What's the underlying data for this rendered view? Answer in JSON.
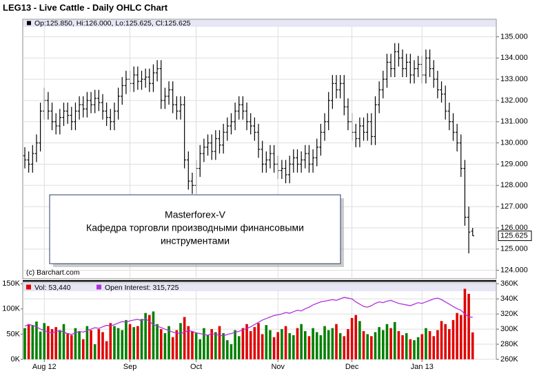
{
  "chart_data": [
    {
      "type": "ohlc",
      "title": "LEG13 - Live Cattle - Daily OHLC Chart",
      "legend": "Op:125.850, Hi:126.000, Lo:125.625, Cl:125.625",
      "watermark": "(c) Barchart.com",
      "annotation": [
        "Masterforex-V",
        "Кафедра торговли производными финансовыми",
        "инструментами"
      ],
      "color": "#000000",
      "grid": true,
      "ylim": [
        123.6,
        135.5
      ],
      "yticks": [
        {
          "value": 124,
          "label": "124.000"
        },
        {
          "value": 125,
          "label": "125.000"
        },
        {
          "value": 126,
          "label": "126.000"
        },
        {
          "value": 127,
          "label": "127.000"
        },
        {
          "value": 128,
          "label": "128.000"
        },
        {
          "value": 129,
          "label": "129.000"
        },
        {
          "value": 130,
          "label": "130.000"
        },
        {
          "value": 131,
          "label": "131.000"
        },
        {
          "value": 132,
          "label": "132.000"
        },
        {
          "value": 133,
          "label": "133.000"
        },
        {
          "value": 134,
          "label": "134.000"
        },
        {
          "value": 135,
          "label": "135.000"
        }
      ],
      "open": [
        129.4,
        129.2,
        129.0,
        129.5,
        130.0,
        131.5,
        132.0,
        131.5,
        131.0,
        130.8,
        131.2,
        131.5,
        131.3,
        131.0,
        131.5,
        131.8,
        131.6,
        132.0,
        131.8,
        132.1,
        131.9,
        131.5,
        131.2,
        131.0,
        131.5,
        132.2,
        132.7,
        133.0,
        132.8,
        133.2,
        132.9,
        133.0,
        133.1,
        132.8,
        133.3,
        133.5,
        132.0,
        132.2,
        132.5,
        131.8,
        131.5,
        131.8,
        129.2,
        128.2,
        128.0,
        128.8,
        129.5,
        129.8,
        130.0,
        129.6,
        130.2,
        129.9,
        130.5,
        130.8,
        131.0,
        131.5,
        131.8,
        131.5,
        131.0,
        130.8,
        130.5,
        129.7,
        129.0,
        129.2,
        129.5,
        129.0,
        128.7,
        128.8,
        128.5,
        129.0,
        129.3,
        129.0,
        129.2,
        129.5,
        129.0,
        129.3,
        129.8,
        130.5,
        131.0,
        132.0,
        132.8,
        132.5,
        132.8,
        131.7,
        131.0,
        130.5,
        130.2,
        130.8,
        130.5,
        131.0,
        130.3,
        131.8,
        132.5,
        133.0,
        133.8,
        133.5,
        134.3,
        134.0,
        133.5,
        133.8,
        133.2,
        133.5,
        133.7,
        133.2,
        134.0,
        133.5,
        133.0,
        132.5,
        132.3,
        131.5,
        131.0,
        130.5,
        130.0,
        128.8,
        126.5,
        125.85
      ],
      "high": [
        129.8,
        129.6,
        129.9,
        130.4,
        131.9,
        132.6,
        132.4,
        131.9,
        131.4,
        131.6,
        131.9,
        131.9,
        131.7,
        131.9,
        132.2,
        132.2,
        132.4,
        132.4,
        132.5,
        132.5,
        132.3,
        131.9,
        131.6,
        131.9,
        132.6,
        133.1,
        133.4,
        133.4,
        133.6,
        133.6,
        133.4,
        133.5,
        133.5,
        133.7,
        133.9,
        133.9,
        132.6,
        132.9,
        132.9,
        132.2,
        132.2,
        132.2,
        129.6,
        128.6,
        129.2,
        129.9,
        130.2,
        130.4,
        130.4,
        130.6,
        130.6,
        130.9,
        131.2,
        131.4,
        131.9,
        132.2,
        132.2,
        131.9,
        131.4,
        131.2,
        130.9,
        130.1,
        129.6,
        129.9,
        129.9,
        129.4,
        129.2,
        129.2,
        129.4,
        129.7,
        129.7,
        129.6,
        129.9,
        129.9,
        129.7,
        130.2,
        130.9,
        131.4,
        132.4,
        133.2,
        133.2,
        133.2,
        133.2,
        132.1,
        131.4,
        130.9,
        131.2,
        131.2,
        131.4,
        131.4,
        132.2,
        132.9,
        133.4,
        134.2,
        134.2,
        134.7,
        134.7,
        134.4,
        134.2,
        134.2,
        133.9,
        134.1,
        134.1,
        134.4,
        134.4,
        133.9,
        133.4,
        132.9,
        132.7,
        131.9,
        131.4,
        130.9,
        130.4,
        129.2,
        127.0,
        126.0
      ],
      "low": [
        128.8,
        128.6,
        128.6,
        129.1,
        129.6,
        131.1,
        131.1,
        130.6,
        130.4,
        130.4,
        130.8,
        130.9,
        130.6,
        130.6,
        131.1,
        131.2,
        131.2,
        131.4,
        131.4,
        131.5,
        131.1,
        130.8,
        130.6,
        130.6,
        131.1,
        131.8,
        132.3,
        132.4,
        132.4,
        132.5,
        132.5,
        132.6,
        132.4,
        132.4,
        132.9,
        131.6,
        131.6,
        131.8,
        131.4,
        131.1,
        131.1,
        128.8,
        127.8,
        127.6,
        127.6,
        128.4,
        129.1,
        129.4,
        129.2,
        129.2,
        129.5,
        129.5,
        130.1,
        130.4,
        130.6,
        131.1,
        131.1,
        130.6,
        130.4,
        130.1,
        129.3,
        128.6,
        128.6,
        128.8,
        128.6,
        128.3,
        128.3,
        128.1,
        128.1,
        128.6,
        128.6,
        128.6,
        128.8,
        128.6,
        128.6,
        128.9,
        129.4,
        130.1,
        130.6,
        131.6,
        132.1,
        132.1,
        131.3,
        130.6,
        130.1,
        129.8,
        129.8,
        130.1,
        130.1,
        129.9,
        129.9,
        131.4,
        132.1,
        132.6,
        133.1,
        133.1,
        133.6,
        133.1,
        133.1,
        132.8,
        132.8,
        133.1,
        132.8,
        132.8,
        133.1,
        132.6,
        132.1,
        131.9,
        131.1,
        130.6,
        130.1,
        129.6,
        128.4,
        126.1,
        124.8,
        125.625
      ],
      "close": [
        129.2,
        129.0,
        129.5,
        130.0,
        131.5,
        132.0,
        131.5,
        131.0,
        130.8,
        131.2,
        131.5,
        131.3,
        131.0,
        131.5,
        131.8,
        131.6,
        132.0,
        131.8,
        132.1,
        131.9,
        131.5,
        131.2,
        131.0,
        131.5,
        132.2,
        132.7,
        133.0,
        132.8,
        133.2,
        132.9,
        133.0,
        133.1,
        132.8,
        133.3,
        133.5,
        132.0,
        132.2,
        132.5,
        131.8,
        131.5,
        131.8,
        129.2,
        128.2,
        128.0,
        128.8,
        129.5,
        129.8,
        130.0,
        129.6,
        130.2,
        129.9,
        130.5,
        130.8,
        131.0,
        131.5,
        131.8,
        131.5,
        131.0,
        130.8,
        130.5,
        129.7,
        129.0,
        129.2,
        129.5,
        129.0,
        128.7,
        128.8,
        128.5,
        129.0,
        129.3,
        129.0,
        129.2,
        129.5,
        129.0,
        129.3,
        129.8,
        130.5,
        131.0,
        132.0,
        132.8,
        132.5,
        132.8,
        131.7,
        131.0,
        130.5,
        130.2,
        130.8,
        130.5,
        131.0,
        130.3,
        131.8,
        132.5,
        133.0,
        133.8,
        133.5,
        134.3,
        134.0,
        133.5,
        133.8,
        133.2,
        133.5,
        133.7,
        133.2,
        134.0,
        133.5,
        133.0,
        132.5,
        132.3,
        131.5,
        131.0,
        130.5,
        130.0,
        128.8,
        126.5,
        125.8,
        125.625
      ]
    },
    {
      "type": "bar",
      "up_color": "#008000",
      "down_color": "#e00000",
      "grid": true,
      "categories": [
        null,
        null,
        null,
        null,
        null,
        "Aug 12",
        null,
        null,
        null,
        null,
        null,
        null,
        null,
        null,
        null,
        null,
        null,
        null,
        null,
        null,
        null,
        null,
        null,
        null,
        null,
        null,
        null,
        "Sep",
        null,
        null,
        null,
        null,
        null,
        null,
        null,
        null,
        null,
        null,
        null,
        null,
        null,
        null,
        null,
        null,
        "Oct",
        null,
        null,
        null,
        null,
        null,
        null,
        null,
        null,
        null,
        null,
        null,
        null,
        null,
        null,
        null,
        null,
        null,
        null,
        null,
        null,
        "Nov",
        null,
        null,
        null,
        null,
        null,
        null,
        null,
        null,
        null,
        null,
        null,
        null,
        null,
        null,
        null,
        null,
        null,
        null,
        "Dec",
        null,
        null,
        null,
        null,
        null,
        null,
        null,
        null,
        null,
        null,
        null,
        null,
        null,
        null,
        null,
        null,
        null,
        "Jan 13",
        null,
        null,
        null,
        null,
        null,
        null,
        null,
        null,
        null,
        null,
        null,
        null,
        null
      ],
      "ylim": [
        0,
        153000
      ],
      "yticks": [
        {
          "value": 0,
          "label": "0K"
        },
        {
          "value": 50000,
          "label": "50K"
        },
        {
          "value": 100000,
          "label": "100K"
        },
        {
          "value": 150000,
          "label": "150K"
        }
      ],
      "y2lim": [
        260000,
        362000
      ],
      "y2ticks": [
        {
          "value": 260000,
          "label": "260K"
        },
        {
          "value": 280000,
          "label": "280K"
        },
        {
          "value": 300000,
          "label": "300K"
        },
        {
          "value": 320000,
          "label": "320K"
        },
        {
          "value": 340000,
          "label": "340K"
        },
        {
          "value": 360000,
          "label": "360K"
        }
      ],
      "series": [
        {
          "name": "Vol: 53,440",
          "color": "#e00000",
          "values": [
            62000,
            70000,
            68000,
            75000,
            55000,
            72000,
            66000,
            60000,
            64000,
            58000,
            70000,
            52000,
            48000,
            62000,
            56000,
            40000,
            66000,
            58000,
            30000,
            60000,
            54000,
            36000,
            72000,
            66000,
            62000,
            58000,
            78000,
            70000,
            64000,
            66000,
            80000,
            92000,
            88000,
            95000,
            70000,
            60000,
            52000,
            66000,
            44000,
            58000,
            72000,
            84000,
            66000,
            56000,
            52000,
            40000,
            62000,
            48000,
            60000,
            54000,
            66000,
            52000,
            38000,
            30000,
            58000,
            46000,
            62000,
            70000,
            56000,
            64000,
            72000,
            50000,
            68000,
            58000,
            44000,
            54000,
            60000,
            66000,
            52000,
            48000,
            62000,
            70000,
            56000,
            46000,
            62000,
            54000,
            48000,
            66000,
            58000,
            62000,
            70000,
            52000,
            46000,
            60000,
            82000,
            88000,
            76000,
            56000,
            50000,
            46000,
            54000,
            64000,
            58000,
            70000,
            62000,
            74000,
            56000,
            48000,
            52000,
            40000,
            38000,
            44000,
            50000,
            62000,
            56000,
            46000,
            58000,
            76000,
            70000,
            60000,
            78000,
            92000,
            88000,
            140000,
            130000,
            53440
          ]
        },
        {
          "name": "Open Interest: 315,725",
          "color": "#b030e0",
          "axis": "y2",
          "values": [
            304000,
            306000,
            305000,
            303000,
            300000,
            298000,
            296000,
            295000,
            297000,
            298000,
            296000,
            294000,
            293000,
            295000,
            297000,
            296000,
            298000,
            300000,
            302000,
            301000,
            303000,
            305000,
            304000,
            306000,
            308000,
            310000,
            309000,
            311000,
            312000,
            313000,
            311000,
            314000,
            310000,
            306000,
            304000,
            302000,
            300000,
            298000,
            296000,
            295000,
            294000,
            296000,
            298000,
            297000,
            295000,
            294000,
            293000,
            292000,
            294000,
            293000,
            292000,
            291000,
            293000,
            294000,
            296000,
            297000,
            299000,
            301000,
            303000,
            306000,
            309000,
            312000,
            314000,
            316000,
            318000,
            319000,
            320000,
            322000,
            321000,
            323000,
            325000,
            324000,
            327000,
            329000,
            332000,
            334000,
            336000,
            337000,
            338000,
            339000,
            338000,
            340000,
            342000,
            341000,
            340000,
            336000,
            333000,
            330000,
            329000,
            331000,
            334000,
            336000,
            335000,
            337000,
            338000,
            336000,
            334000,
            333000,
            332000,
            331000,
            333000,
            335000,
            334000,
            336000,
            338000,
            340000,
            341000,
            339000,
            336000,
            333000,
            330000,
            327000,
            325000,
            320000,
            316000,
            315725
          ]
        }
      ]
    }
  ]
}
